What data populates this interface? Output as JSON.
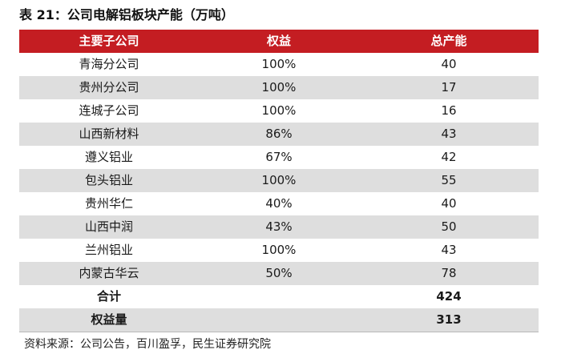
{
  "title": "表 21：公司电解铝板块产能（万吨）",
  "table": {
    "headers": [
      "主要子公司",
      "权益",
      "总产能"
    ],
    "rows": [
      [
        "青海分公司",
        "100%",
        "40"
      ],
      [
        "贵州分公司",
        "100%",
        "17"
      ],
      [
        "连城子公司",
        "100%",
        "16"
      ],
      [
        "山西新材料",
        "86%",
        "43"
      ],
      [
        "遵义铝业",
        "67%",
        "42"
      ],
      [
        "包头铝业",
        "100%",
        "55"
      ],
      [
        "贵州华仁",
        "40%",
        "40"
      ],
      [
        "山西中润",
        "43%",
        "50"
      ],
      [
        "兰州铝业",
        "100%",
        "43"
      ],
      [
        "内蒙古华云",
        "50%",
        "78"
      ]
    ],
    "totals": [
      [
        "合计",
        "",
        "424"
      ],
      [
        "权益量",
        "",
        "313"
      ]
    ]
  },
  "source": "资料来源：公司公告，百川盈孚，民生证券研究院",
  "colors": {
    "header_bg": "#c41d22",
    "stripe": "#dedede"
  }
}
